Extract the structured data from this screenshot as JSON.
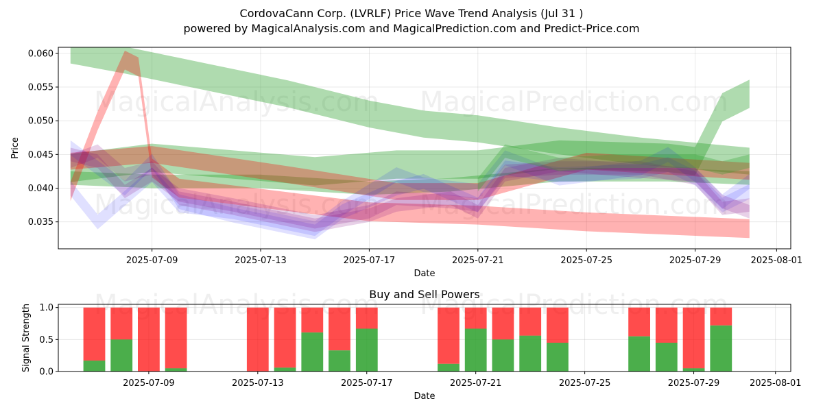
{
  "figure": {
    "title_line1": "CordovaCann Corp. (LVRLF) Price Wave Trend Analysis (Jul 31 )",
    "title_line2": "powered by MagicalAnalysis.com and MagicalPrediction.com and Predict-Price.com",
    "watermarks": [
      "MagicalAnalysis.com",
      "MagicalPrediction.com"
    ]
  },
  "chart_data": [
    {
      "type": "area",
      "title": "",
      "xlabel": "Date",
      "ylabel": "Price",
      "ylim": [
        0.031,
        0.0609
      ],
      "xlim": [
        "2025-07-05",
        "2025-08-01"
      ],
      "grid": true,
      "x_ticks": [
        "2025-07-09",
        "2025-07-13",
        "2025-07-17",
        "2025-07-21",
        "2025-07-25",
        "2025-07-29",
        "2025-08-01"
      ],
      "y_ticks": [
        0.035,
        0.04,
        0.045,
        0.05,
        0.055,
        0.06
      ],
      "y_tick_labels": [
        "0.035",
        "0.040",
        "0.045",
        "0.050",
        "0.055",
        "0.060"
      ],
      "series": [
        {
          "color": "#2ca02c",
          "opacity": 0.38,
          "x": [
            "2025-07-06",
            "2025-07-08",
            "2025-07-11",
            "2025-07-14",
            "2025-07-17",
            "2025-07-19",
            "2025-07-21",
            "2025-07-24",
            "2025-07-27",
            "2025-07-31"
          ],
          "y": [
            0.0605,
            0.059,
            0.0565,
            0.054,
            0.051,
            0.0495,
            0.0488,
            0.047,
            0.0455,
            0.044
          ],
          "width": 0.004
        },
        {
          "color": "#2ca02c",
          "opacity": 0.38,
          "x": [
            "2025-07-06",
            "2025-07-09",
            "2025-07-12",
            "2025-07-15",
            "2025-07-18",
            "2025-07-21",
            "2025-07-24",
            "2025-07-28",
            "2025-07-29",
            "2025-07-30",
            "2025-07-31"
          ],
          "y": [
            0.043,
            0.0445,
            0.0435,
            0.0425,
            0.0435,
            0.0435,
            0.045,
            0.0445,
            0.044,
            0.052,
            0.054
          ],
          "width": 0.0042
        },
        {
          "color": "#2ca02c",
          "opacity": 0.38,
          "x": [
            "2025-07-06",
            "2025-07-09",
            "2025-07-13",
            "2025-07-17",
            "2025-07-20",
            "2025-07-24",
            "2025-07-28",
            "2025-07-31"
          ],
          "y": [
            0.0415,
            0.041,
            0.041,
            0.04,
            0.0405,
            0.042,
            0.042,
            0.0415
          ],
          "width": 0.002
        },
        {
          "color": "#ff0000",
          "opacity": 0.3,
          "x": [
            "2025-07-06",
            "2025-07-07",
            "2025-07-08",
            "2025-07-08.5",
            "2025-07-09",
            "2025-07-10",
            "2025-07-13",
            "2025-07-17",
            "2025-07-21",
            "2025-07-25",
            "2025-07-31"
          ],
          "y": [
            0.0395,
            0.05,
            0.059,
            0.058,
            0.043,
            0.04,
            0.0385,
            0.0365,
            0.036,
            0.035,
            0.034
          ],
          "width": 0.0028
        },
        {
          "color": "#ff0000",
          "opacity": 0.3,
          "x": [
            "2025-07-06",
            "2025-07-09",
            "2025-07-14",
            "2025-07-18",
            "2025-07-21",
            "2025-07-25",
            "2025-07-29",
            "2025-07-31"
          ],
          "y": [
            0.044,
            0.045,
            0.042,
            0.0395,
            0.0395,
            0.044,
            0.043,
            0.0425
          ],
          "width": 0.0025
        },
        {
          "color": "#0000ff",
          "opacity": 0.12,
          "x": [
            "2025-07-06",
            "2025-07-07",
            "2025-07-08",
            "2025-07-09",
            "2025-07-10",
            "2025-07-12",
            "2025-07-15",
            "2025-07-16",
            "2025-07-18",
            "2025-07-19",
            "2025-07-21",
            "2025-07-22",
            "2025-07-24",
            "2025-07-27",
            "2025-07-28",
            "2025-07-29",
            "2025-07-30",
            "2025-07-31"
          ],
          "y": [
            0.04,
            0.035,
            0.0385,
            0.042,
            0.0375,
            0.0365,
            0.034,
            0.037,
            0.042,
            0.0405,
            0.0395,
            0.0445,
            0.0415,
            0.043,
            0.045,
            0.042,
            0.038,
            0.041
          ],
          "width": 0.0022
        },
        {
          "color": "#0000ff",
          "opacity": 0.12,
          "x": [
            "2025-07-06",
            "2025-07-07",
            "2025-07-08",
            "2025-07-09",
            "2025-07-10",
            "2025-07-12",
            "2025-07-15",
            "2025-07-16",
            "2025-07-18",
            "2025-07-19",
            "2025-07-21",
            "2025-07-22",
            "2025-07-24",
            "2025-07-27",
            "2025-07-28",
            "2025-07-29",
            "2025-07-30",
            "2025-07-31"
          ],
          "y": [
            0.046,
            0.043,
            0.04,
            0.044,
            0.038,
            0.036,
            0.0335,
            0.0365,
            0.04,
            0.041,
            0.0375,
            0.043,
            0.042,
            0.0425,
            0.0435,
            0.0415,
            0.0375,
            0.0395
          ],
          "width": 0.0022
        },
        {
          "color": "#800080",
          "opacity": 0.18,
          "x": [
            "2025-07-06",
            "2025-07-07",
            "2025-07-08",
            "2025-07-09",
            "2025-07-10",
            "2025-07-12",
            "2025-07-15",
            "2025-07-17",
            "2025-07-18",
            "2025-07-20",
            "2025-07-21",
            "2025-07-22",
            "2025-07-24",
            "2025-07-27",
            "2025-07-29",
            "2025-07-30",
            "2025-07-31"
          ],
          "y": [
            0.045,
            0.044,
            0.0395,
            0.042,
            0.039,
            0.0375,
            0.035,
            0.0365,
            0.0385,
            0.038,
            0.0375,
            0.0425,
            0.043,
            0.043,
            0.0415,
            0.037,
            0.0375
          ],
          "width": 0.002
        },
        {
          "color": "#800080",
          "opacity": 0.18,
          "x": [
            "2025-07-06",
            "2025-07-07",
            "2025-07-08",
            "2025-07-09",
            "2025-07-10",
            "2025-07-12",
            "2025-07-15",
            "2025-07-17",
            "2025-07-18",
            "2025-07-20",
            "2025-07-21",
            "2025-07-22",
            "2025-07-24",
            "2025-07-27",
            "2025-07-29",
            "2025-07-30",
            "2025-07-31"
          ],
          "y": [
            0.044,
            0.0455,
            0.042,
            0.043,
            0.0385,
            0.037,
            0.0345,
            0.036,
            0.0375,
            0.0385,
            0.0365,
            0.042,
            0.0435,
            0.0425,
            0.042,
            0.038,
            0.0365
          ],
          "width": 0.002
        },
        {
          "color": "#2ca02c",
          "opacity": 0.3,
          "x": [
            "2025-07-21",
            "2025-07-22",
            "2025-07-24",
            "2025-07-26",
            "2025-07-28",
            "2025-07-29",
            "2025-07-30",
            "2025-07-31"
          ],
          "y": [
            0.0405,
            0.0455,
            0.0435,
            0.044,
            0.044,
            0.044,
            0.043,
            0.044
          ],
          "width": 0.002
        }
      ]
    },
    {
      "type": "bar",
      "title": "Buy and Sell Powers",
      "xlabel": "Date",
      "ylabel": "Signal Strength",
      "ylim": [
        0,
        1.05
      ],
      "grid": true,
      "x_ticks": [
        "2025-07-09",
        "2025-07-13",
        "2025-07-17",
        "2025-07-21",
        "2025-07-25",
        "2025-07-29",
        "2025-08-01"
      ],
      "y_ticks": [
        0.0,
        0.5,
        1.0
      ],
      "y_tick_labels": [
        "0.0",
        "0.5",
        "1.0"
      ],
      "colors": {
        "buy": "#2ca02c",
        "sell": "#ff0000"
      },
      "categories": [
        "2025-07-07",
        "2025-07-08",
        "2025-07-09",
        "2025-07-10",
        "2025-07-13",
        "2025-07-14",
        "2025-07-15",
        "2025-07-16",
        "2025-07-17",
        "2025-07-20",
        "2025-07-21",
        "2025-07-22",
        "2025-07-23",
        "2025-07-24",
        "2025-07-27",
        "2025-07-28",
        "2025-07-29",
        "2025-07-30"
      ],
      "series": [
        {
          "name": "Buy",
          "values": [
            0.17,
            0.5,
            0.0,
            0.05,
            0.0,
            0.06,
            0.61,
            0.33,
            0.67,
            0.12,
            0.67,
            0.5,
            0.56,
            0.45,
            0.55,
            0.45,
            0.05,
            0.72
          ]
        },
        {
          "name": "Sell",
          "values": [
            0.83,
            0.5,
            1.0,
            0.95,
            1.0,
            0.94,
            0.39,
            0.67,
            0.33,
            0.88,
            0.33,
            0.5,
            0.44,
            0.55,
            0.45,
            0.55,
            0.95,
            0.28
          ]
        }
      ]
    }
  ]
}
